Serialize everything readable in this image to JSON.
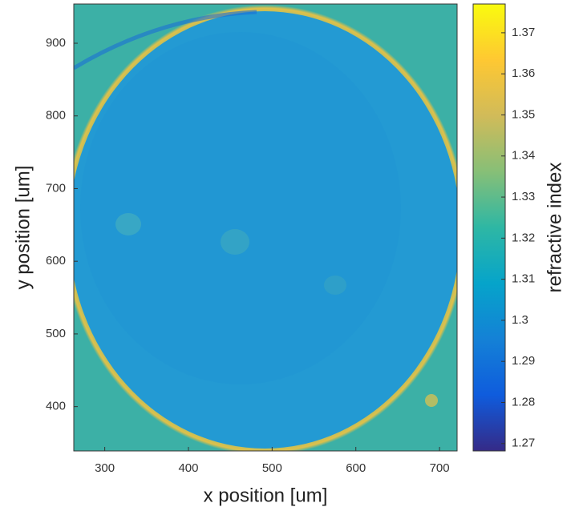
{
  "chart_data": {
    "type": "heatmap",
    "xlabel": "x position [um]",
    "ylabel": "y position [um]",
    "xlim": [
      263,
      721
    ],
    "xticks": [
      300,
      400,
      500,
      600,
      700
    ],
    "ylim": [
      339,
      954
    ],
    "yticks": [
      400,
      500,
      600,
      700,
      800,
      900
    ],
    "colorbar": {
      "label": "refractive index",
      "lim": [
        1.2682,
        1.377
      ],
      "ticks": [
        1.27,
        1.28,
        1.29,
        1.3,
        1.31,
        1.32,
        1.33,
        1.34,
        1.35,
        1.36,
        1.37
      ]
    },
    "colormap": [
      "#352a87",
      "#0f5cdd",
      "#1481d6",
      "#06a4ca",
      "#2eb7a4",
      "#87bf77",
      "#d1bb59",
      "#fec832",
      "#f9fb0e"
    ]
  }
}
